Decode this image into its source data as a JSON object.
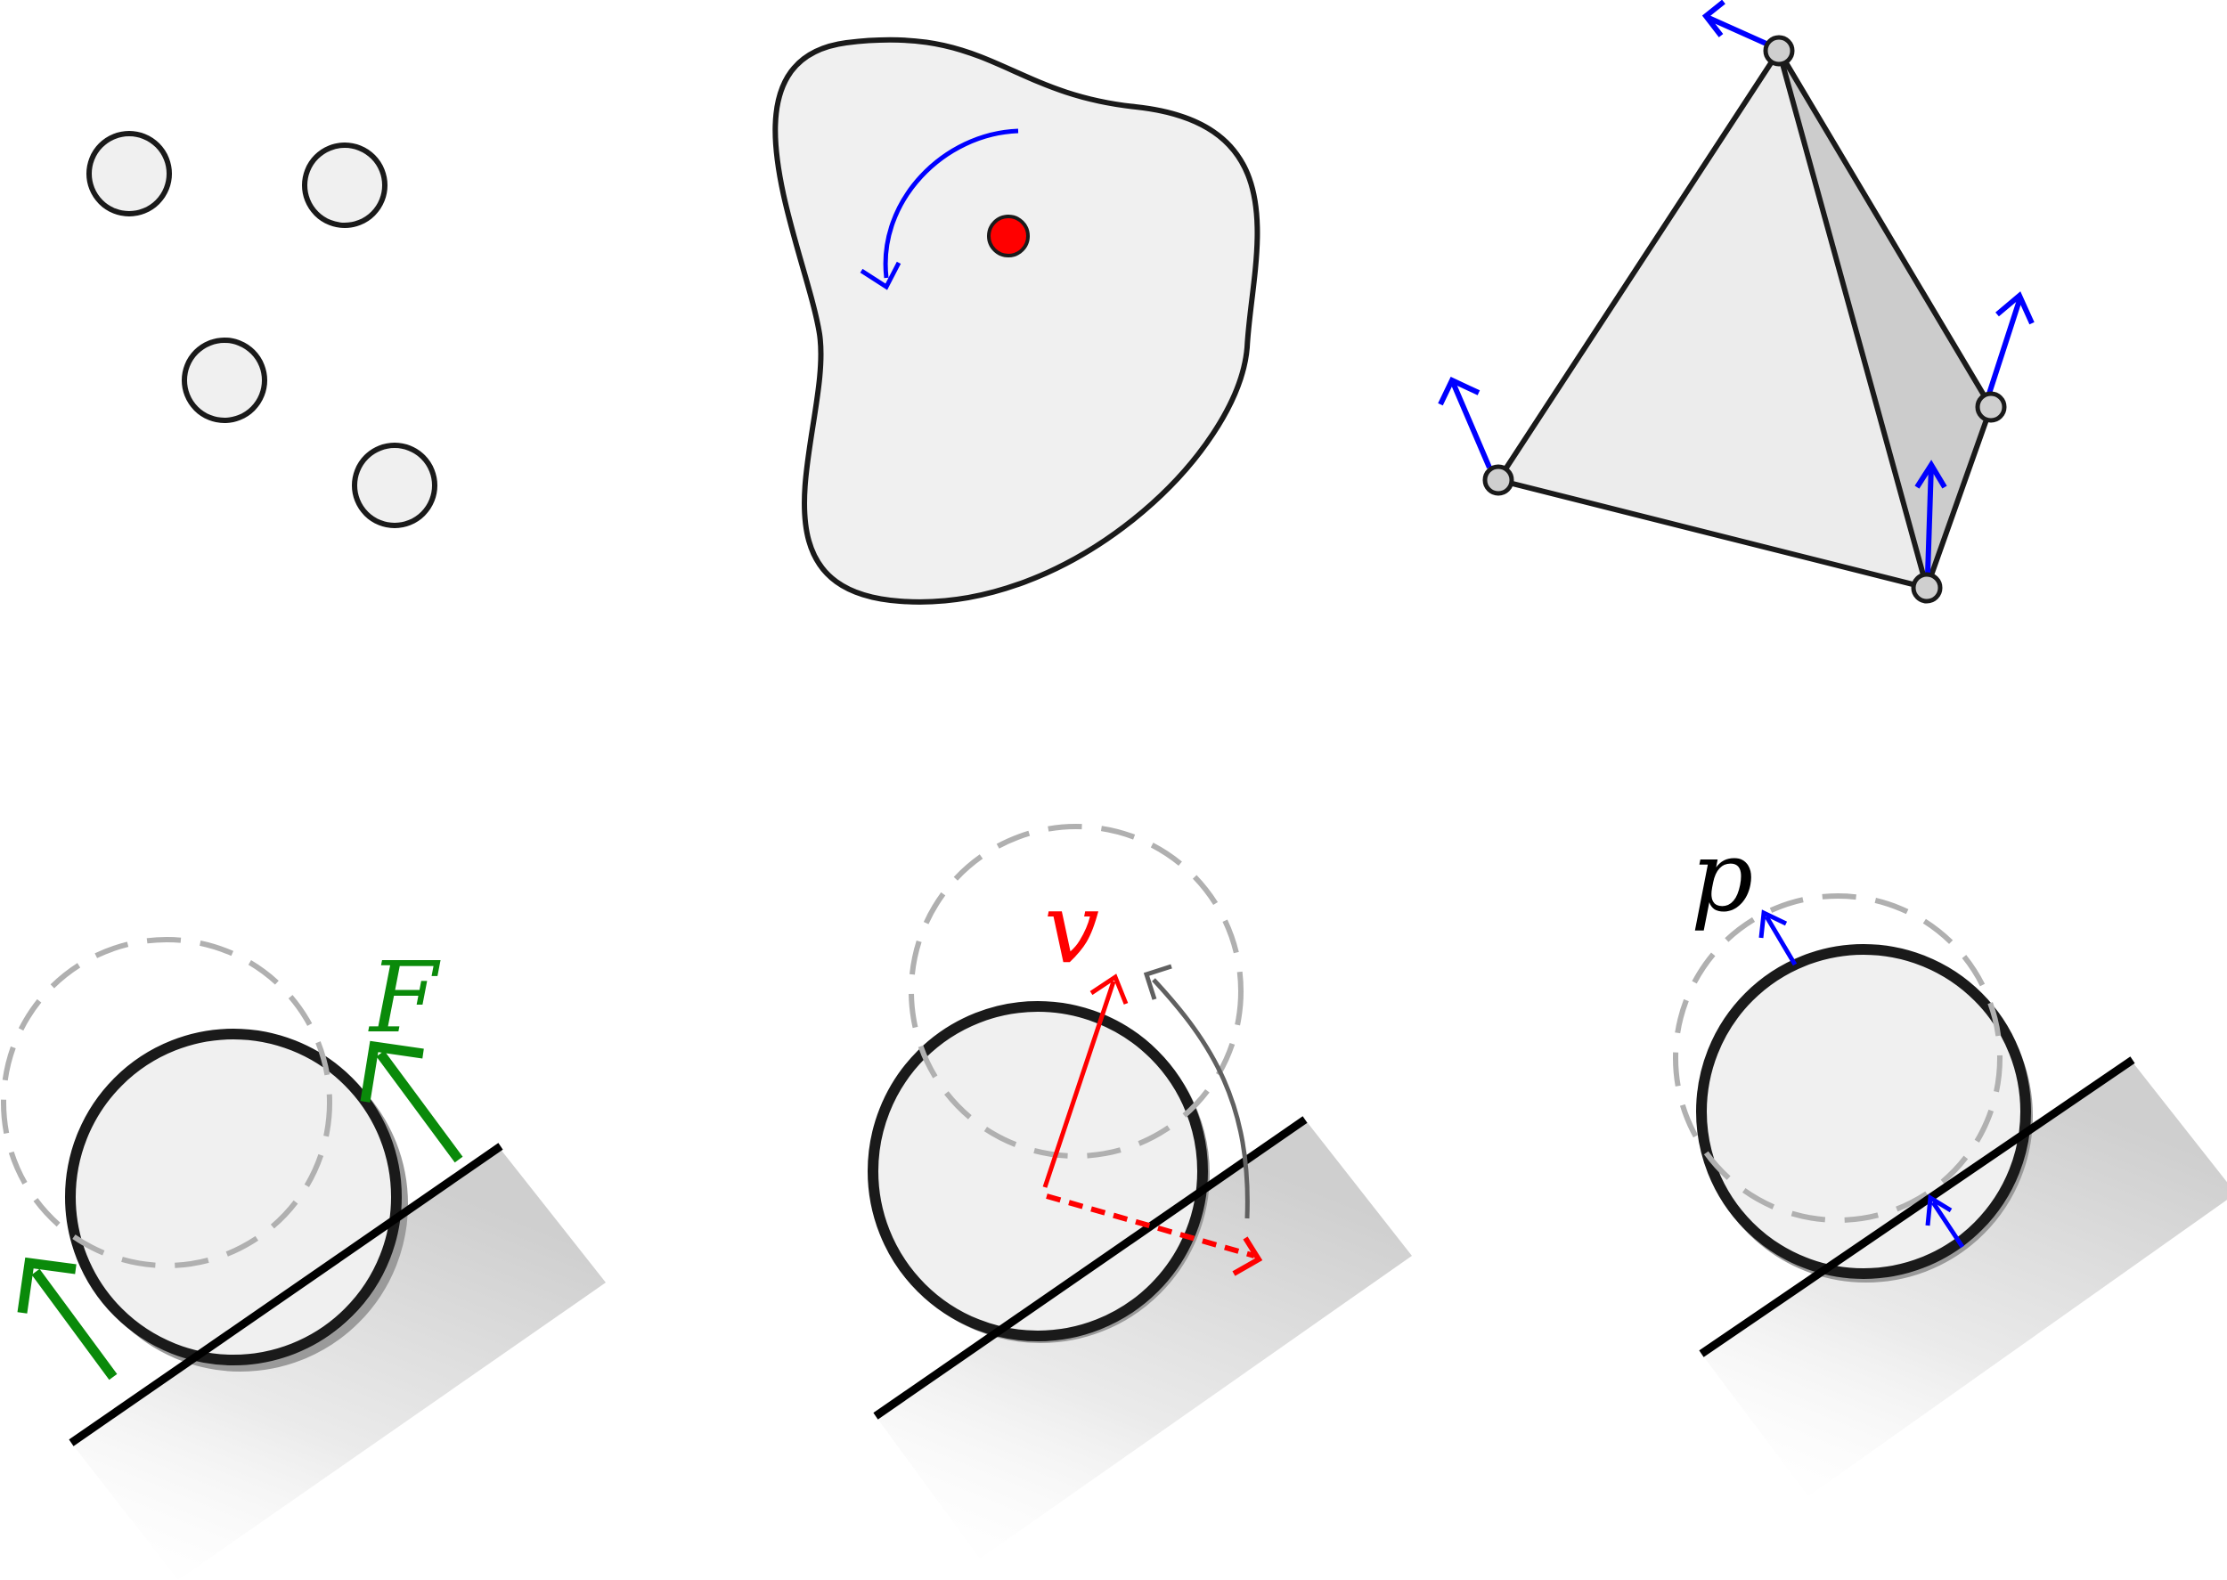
{
  "panels": {
    "particles": {},
    "rigid_body": {},
    "soft_body": {},
    "force_response": {
      "label": "F"
    },
    "velocity_projection": {
      "label": "v"
    },
    "position_projection": {
      "label": "p"
    }
  },
  "colors": {
    "fill": "#f0f0f0",
    "fill_dark": "#cccccc",
    "outline": "#1a1a1a",
    "ghost": "#b0b0b0",
    "force": "#0a8a0a",
    "velocity": "#ff0000",
    "correction": "#0000ff",
    "rotation": "#606060",
    "center": "#ff0000"
  }
}
